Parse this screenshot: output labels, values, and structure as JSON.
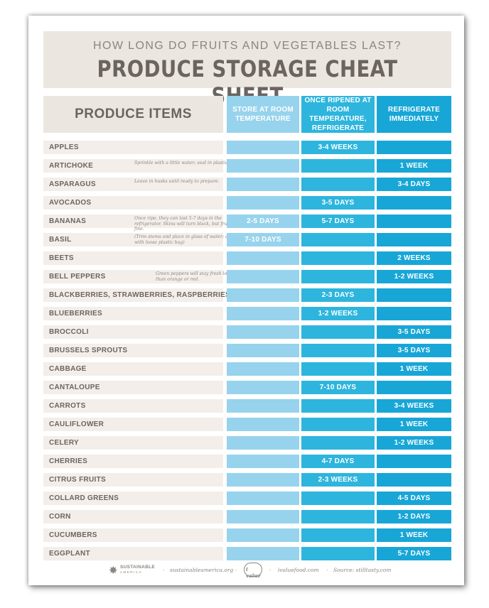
{
  "header": {
    "subtitle": "HOW LONG DO FRUITS AND VEGETABLES LAST?",
    "title": "PRODUCE STORAGE CHEAT SHEET"
  },
  "columns": {
    "items": "PRODUCE ITEMS",
    "room": "STORE AT ROOM TEMPERATURE",
    "ripened": "ONCE RIPENED AT ROOM TEMPERATURE, REFRIGERATE",
    "fridge": "REFRIGERATE IMMEDIATELY"
  },
  "rows": [
    {
      "name": "APPLES",
      "note": "",
      "room": "",
      "ripened": "3-4 WEEKS",
      "fridge": ""
    },
    {
      "name": "ARTICHOKE",
      "note": "Sprinkle with a little water; seal in plastic bag.",
      "room": "",
      "ripened": "",
      "fridge": "1 WEEK"
    },
    {
      "name": "ASPARAGUS",
      "note": "Leave in husks until ready to prepare.",
      "room": "",
      "ripened": "",
      "fridge": "3-4 DAYS"
    },
    {
      "name": "AVOCADOS",
      "note": "",
      "room": "",
      "ripened": "3-5 DAYS",
      "fridge": ""
    },
    {
      "name": "BANANAS",
      "note": "Once ripe, they can last 5-7 days in the refrigerator. Skins will turn black, but fruit will be fine.",
      "room": "2-5 DAYS",
      "ripened": "5-7 DAYS",
      "fridge": ""
    },
    {
      "name": "BASIL",
      "note": "(Trim stems and place in glass of water; cover with loose plastic bag)",
      "room": "7-10 DAYS",
      "ripened": "",
      "fridge": ""
    },
    {
      "name": "BEETS",
      "note": "",
      "room": "",
      "ripened": "",
      "fridge": "2 WEEKS"
    },
    {
      "name": "BELL PEPPERS",
      "note": "Green peppers will stay fresh longer than orange or red.",
      "room": "",
      "ripened": "",
      "fridge": "1-2 WEEKS"
    },
    {
      "name": "BLACKBERRIES, STRAWBERRIES, RASPBERRIES",
      "note": "",
      "room": "",
      "ripened": "2-3 DAYS",
      "fridge": ""
    },
    {
      "name": "BLUEBERRIES",
      "note": "",
      "room": "",
      "ripened": "1-2 WEEKS",
      "fridge": ""
    },
    {
      "name": "BROCCOLI",
      "note": "",
      "room": "",
      "ripened": "",
      "fridge": "3-5 DAYS"
    },
    {
      "name": "BRUSSELS SPROUTS",
      "note": "",
      "room": "",
      "ripened": "",
      "fridge": "3-5 DAYS"
    },
    {
      "name": "CABBAGE",
      "note": "",
      "room": "",
      "ripened": "",
      "fridge": "1 WEEK"
    },
    {
      "name": "CANTALOUPE",
      "note": "",
      "room": "",
      "ripened": "7-10 DAYS",
      "fridge": ""
    },
    {
      "name": "CARROTS",
      "note": "",
      "room": "",
      "ripened": "",
      "fridge": "3-4 WEEKS"
    },
    {
      "name": "CAULIFLOWER",
      "note": "",
      "room": "",
      "ripened": "",
      "fridge": "1 WEEK"
    },
    {
      "name": "CELERY",
      "note": "",
      "room": "",
      "ripened": "",
      "fridge": "1-2 WEEKS"
    },
    {
      "name": "CHERRIES",
      "note": "",
      "room": "",
      "ripened": "4-7 DAYS",
      "fridge": ""
    },
    {
      "name": "CITRUS FRUITS",
      "note": "",
      "room": "",
      "ripened": "2-3 WEEKS",
      "fridge": ""
    },
    {
      "name": "COLLARD GREENS",
      "note": "",
      "room": "",
      "ripened": "",
      "fridge": "4-5 DAYS"
    },
    {
      "name": "CORN",
      "note": "",
      "room": "",
      "ripened": "",
      "fridge": "1-2 DAYS"
    },
    {
      "name": "CUCUMBERS",
      "note": "",
      "room": "",
      "ripened": "",
      "fridge": "1 WEEK"
    },
    {
      "name": "EGGPLANT",
      "note": "",
      "room": "",
      "ripened": "",
      "fridge": "5-7 DAYS"
    }
  ],
  "footer": {
    "logo1_line1": "SUSTAINABLE",
    "logo1_line2": "AMERICA",
    "link1": "sustainableamerica.org",
    "logo2_text": "i value",
    "link2": "ivaluefood.com",
    "source": "Source: stilltasty.com"
  }
}
